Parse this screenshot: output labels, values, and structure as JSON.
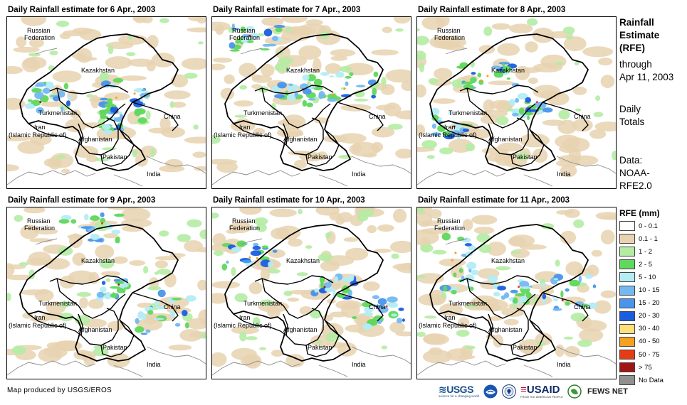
{
  "panels": [
    {
      "title": "Daily Rainfall estimate for 6 Apr., 2003",
      "date": "6 Apr., 2003",
      "seed": 6
    },
    {
      "title": "Daily Rainfall estimate for 7 Apr., 2003",
      "date": "7 Apr., 2003",
      "seed": 7
    },
    {
      "title": "Daily Rainfall estimate for 8 Apr., 2003",
      "date": "8 Apr., 2003",
      "seed": 8
    },
    {
      "title": "Daily Rainfall estimate for 9 Apr., 2003",
      "date": "9 Apr., 2003",
      "seed": 9
    },
    {
      "title": "Daily Rainfall estimate for 10 Apr., 2003",
      "date": "10 Apr., 2003",
      "seed": 10
    },
    {
      "title": "Daily Rainfall estimate for 11 Apr., 2003",
      "date": "11 Apr., 2003",
      "seed": 11
    }
  ],
  "labels": {
    "russia_line1": "Russian",
    "russia_line2": "Federation",
    "kazakhstan": "Kazakhstan",
    "turkmenistan": "Turkmenistan",
    "iran_line1": "Iran",
    "iran_line2": "(Islamic Republic of)",
    "afghanistan": "Afghanistan",
    "pakistan": "Pakistan",
    "china": "China",
    "india": "India"
  },
  "side": {
    "title_line1": "Rainfall",
    "title_line2": "Estimate",
    "title_line3": "(RFE)",
    "through_line1": "through",
    "through_line2": "Apr 11, 2003",
    "totals_line1": "Daily",
    "totals_line2": "Totals",
    "data_line1": "Data:",
    "data_line2": "NOAA-",
    "data_line3": "RFE2.0"
  },
  "legend": {
    "title": "RFE (mm)",
    "items": [
      {
        "label": "0 - 0.1",
        "color": "#ffffff"
      },
      {
        "label": "0.1 - 1",
        "color": "#e8d2b0"
      },
      {
        "label": "1 - 2",
        "color": "#b4eca4"
      },
      {
        "label": "2 - 5",
        "color": "#5fd85c"
      },
      {
        "label": "5 - 10",
        "color": "#b4ecf4"
      },
      {
        "label": "10 - 15",
        "color": "#74b8f0"
      },
      {
        "label": "15 - 20",
        "color": "#4a94ec"
      },
      {
        "label": "20 - 30",
        "color": "#1a5ee0"
      },
      {
        "label": "30 - 40",
        "color": "#fde07a"
      },
      {
        "label": "40 - 50",
        "color": "#f4a020"
      },
      {
        "label": "50 - 75",
        "color": "#e43c14"
      },
      {
        "label": "> 75",
        "color": "#a01414"
      },
      {
        "label": "No Data",
        "color": "#909090"
      }
    ]
  },
  "footer": {
    "credit": "Map produced by USGS/EROS",
    "usgs": "USGS",
    "usgs_tag": "science for a changing world",
    "usaid": "USAID",
    "usaid_tag": "FROM THE AMERICAN PEOPLE",
    "fews": "FEWS NET"
  }
}
